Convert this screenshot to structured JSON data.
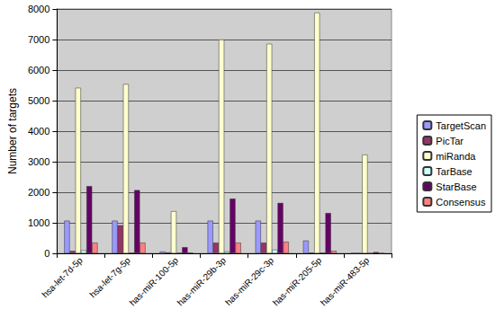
{
  "chart_data": {
    "type": "bar",
    "y_label": "Number of targets",
    "categories": [
      "hsa-let-7d-5p",
      "hsa-let-7g-5p",
      "has-miR-100-5p",
      "has-miR-29b-3p",
      "has-miR-29c-3p",
      "has-miR-205-5p",
      "has-miR-483-5p"
    ],
    "series": [
      {
        "name": "TargetScan",
        "color": "#9999ff",
        "values": [
          1070,
          1070,
          60,
          1070,
          1070,
          420,
          0
        ]
      },
      {
        "name": "PicTar",
        "color": "#993366",
        "values": [
          80,
          920,
          30,
          350,
          350,
          20,
          0
        ]
      },
      {
        "name": "miRanda",
        "color": "#ffffcc",
        "values": [
          5420,
          5540,
          1380,
          7000,
          6860,
          7880,
          3230
        ]
      },
      {
        "name": "TarBase",
        "color": "#ccffff",
        "values": [
          100,
          20,
          10,
          60,
          120,
          20,
          0
        ]
      },
      {
        "name": "StarBase",
        "color": "#660066",
        "values": [
          2200,
          2070,
          200,
          1790,
          1650,
          1320,
          40
        ]
      },
      {
        "name": "Consensus",
        "color": "#ff8080",
        "values": [
          350,
          350,
          20,
          350,
          380,
          80,
          0
        ]
      }
    ],
    "ylim": [
      0,
      8000
    ],
    "yticks": [
      0,
      1000,
      2000,
      3000,
      4000,
      5000,
      6000,
      7000,
      8000
    ],
    "grid": true,
    "legend": "right"
  }
}
